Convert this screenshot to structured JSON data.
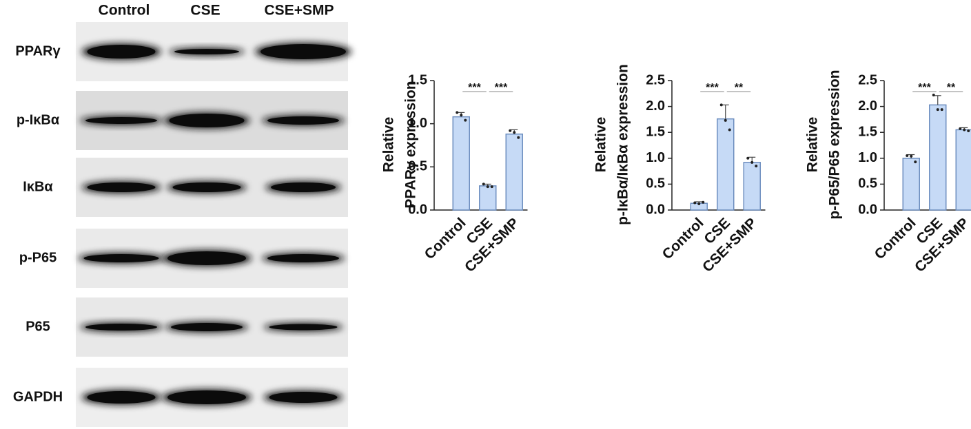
{
  "blot": {
    "lanes": [
      "Control",
      "CSE",
      "CSE+SMP"
    ],
    "rows": [
      "PPARγ",
      "p-IκBα",
      "IκBα",
      "p-P65",
      "P65",
      "GAPDH"
    ]
  },
  "chart_data": [
    {
      "type": "bar",
      "ylabel": [
        "Relative",
        "PPARγ expression"
      ],
      "categories": [
        "Control",
        "CSE",
        "CSE+SMP"
      ],
      "values": [
        1.08,
        0.28,
        0.88
      ],
      "errors": [
        0.05,
        0.02,
        0.05
      ],
      "points": [
        [
          1.13,
          1.1,
          1.04
        ],
        [
          0.3,
          0.27,
          0.27
        ],
        [
          0.92,
          0.9,
          0.84
        ]
      ],
      "color": "#c6daf6",
      "edge": "#6d8ebf",
      "ylim": [
        0,
        1.5
      ],
      "yticks": [
        {
          "value": 0,
          "label": "0.0"
        },
        0.5,
        {
          "value": 1,
          "label": "1.0"
        },
        1.5
      ],
      "annotations": [
        "***",
        "***"
      ]
    },
    {
      "type": "bar",
      "ylabel": [
        "Relative",
        "p-IκBα/IκBα expression"
      ],
      "categories": [
        "Control",
        "CSE",
        "CSE+SMP"
      ],
      "values": [
        0.13,
        1.76,
        0.92
      ],
      "errors": [
        0.03,
        0.27,
        0.1
      ],
      "points": [
        [
          0.14,
          0.12,
          0.15
        ],
        [
          2.03,
          1.73,
          1.55
        ],
        [
          1.0,
          0.92,
          0.85
        ]
      ],
      "color": "#c6daf6",
      "edge": "#6d8ebf",
      "ylim": [
        0,
        2.5
      ],
      "yticks": [
        {
          "value": 0,
          "label": "0.0"
        },
        0.5,
        {
          "value": 1,
          "label": "1.0"
        },
        1.5,
        {
          "value": 2,
          "label": "2.0"
        },
        2.5
      ],
      "annotations": [
        "***",
        "**"
      ]
    },
    {
      "type": "bar",
      "ylabel": [
        "Relative",
        "p-P65/P65 expression"
      ],
      "categories": [
        "Control",
        "CSE",
        "CSE+SMP"
      ],
      "values": [
        1.0,
        2.03,
        1.55
      ],
      "errors": [
        0.07,
        0.18,
        0.04
      ],
      "points": [
        [
          1.05,
          1.04,
          0.93
        ],
        [
          2.22,
          1.94,
          1.94
        ],
        [
          1.57,
          1.55,
          1.53
        ]
      ],
      "color": "#c6daf6",
      "edge": "#6d8ebf",
      "ylim": [
        0,
        2.5
      ],
      "yticks": [
        {
          "value": 0,
          "label": "0.0"
        },
        0.5,
        {
          "value": 1,
          "label": "1.0"
        },
        1.5,
        {
          "value": 2,
          "label": "2.0"
        },
        2.5
      ],
      "annotations": [
        "***",
        "**"
      ]
    }
  ]
}
